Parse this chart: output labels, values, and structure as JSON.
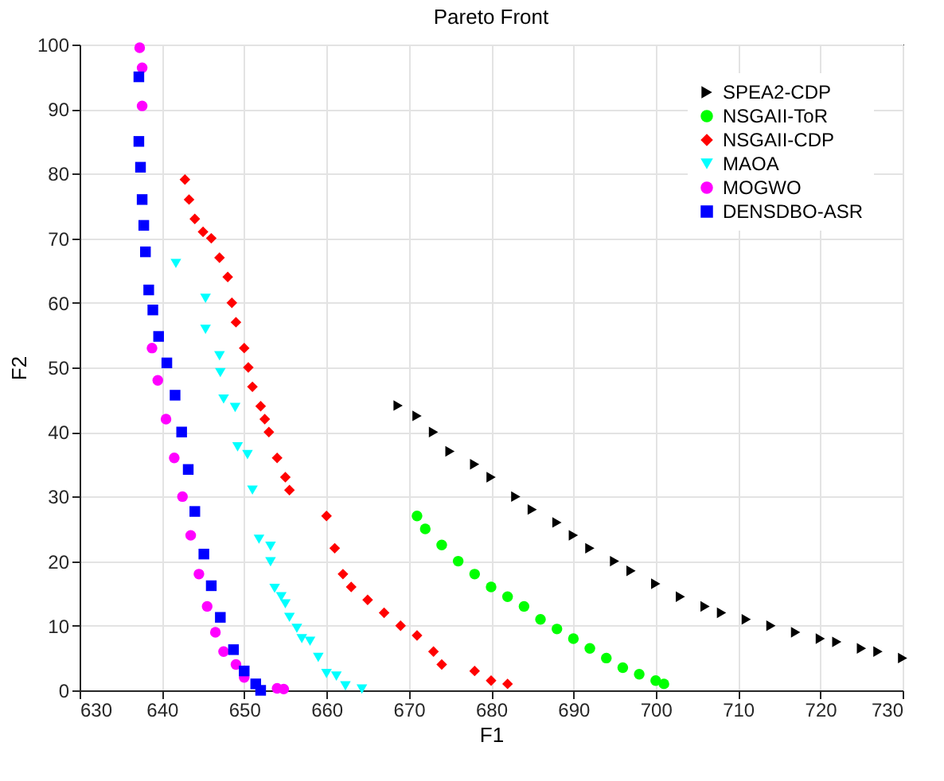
{
  "chart_data": {
    "type": "scatter",
    "title": "Pareto Front",
    "xlabel": "F1",
    "ylabel": "F2",
    "xlim": [
      630,
      730
    ],
    "xticks": [
      630,
      640,
      650,
      660,
      670,
      680,
      690,
      700,
      710,
      720,
      730
    ],
    "ylim": [
      0,
      100
    ],
    "yticks": [
      0,
      10,
      20,
      30,
      40,
      50,
      60,
      70,
      80,
      90,
      100
    ],
    "grid": true,
    "legend": "top right",
    "series": [
      {
        "name": "SPEA2-CDP",
        "color": "#000000",
        "marker": "triangle-right",
        "x": [
          668.7,
          671,
          673,
          675,
          678,
          680,
          683,
          685,
          688,
          690,
          692,
          695,
          697,
          700,
          703,
          706,
          708,
          711,
          714,
          717,
          720,
          722,
          725,
          727,
          730
        ],
        "values": [
          44.1,
          42.5,
          40,
          37,
          35,
          33,
          30,
          28,
          26,
          24,
          22,
          20,
          18.5,
          16.5,
          14.5,
          13,
          12,
          11,
          10,
          9,
          8,
          7.5,
          6.5,
          6,
          5
        ]
      },
      {
        "name": "NSGAII-ToR",
        "color": "#00ff00",
        "marker": "circle",
        "x": [
          671,
          672,
          674,
          676,
          678,
          680,
          682,
          684,
          686,
          688,
          690,
          692,
          694,
          696,
          698,
          700,
          701
        ],
        "values": [
          27,
          25,
          22.5,
          20,
          18,
          16,
          14.5,
          13,
          11,
          9.5,
          8,
          6.5,
          5,
          3.5,
          2.5,
          1.5,
          1
        ]
      },
      {
        "name": "NSGAII-CDP",
        "color": "#ff0000",
        "marker": "diamond",
        "x": [
          642.8,
          643.3,
          644,
          645,
          646,
          647,
          648,
          648.5,
          649,
          650,
          650.5,
          651,
          652,
          652.5,
          653,
          654,
          655,
          655.5,
          660,
          661,
          662,
          663,
          665,
          667,
          669,
          671,
          673,
          674,
          678,
          680,
          682
        ],
        "values": [
          79.1,
          76,
          73,
          71,
          70,
          67,
          64,
          60,
          57,
          53,
          50,
          47,
          44,
          42,
          40,
          36,
          33,
          31,
          27,
          22,
          18,
          16,
          14,
          12,
          10,
          8.5,
          6,
          4,
          3,
          1.5,
          1
        ]
      },
      {
        "name": "MAOA",
        "color": "#00ffff",
        "marker": "triangle-down",
        "x": [
          641.7,
          645.3,
          645.3,
          647,
          647.1,
          647.5,
          648.9,
          649.2,
          650.4,
          651,
          651.8,
          653.2,
          653.2,
          653.7,
          654.5,
          655,
          655.5,
          656.4,
          657,
          658,
          659,
          660,
          661.2,
          662.3,
          664.3
        ],
        "values": [
          66.1,
          60.7,
          55.9,
          51.8,
          49.2,
          45.1,
          43.8,
          37.7,
          36.5,
          31,
          23.4,
          22.3,
          19.9,
          15.8,
          14.5,
          13.4,
          11.3,
          9.6,
          8,
          7.6,
          5.1,
          2.6,
          2.2,
          0.7,
          0.2
        ]
      },
      {
        "name": "MOGWO",
        "color": "#ff00ff",
        "marker": "circle",
        "x": [
          637.3,
          637.6,
          637.6,
          638.8,
          639.5,
          640.5,
          641.5,
          642.5,
          643.5,
          644.5,
          645.5,
          646.5,
          647.5,
          649,
          650,
          654,
          654.8
        ],
        "values": [
          99.5,
          96.4,
          90.5,
          53,
          48,
          42,
          36,
          30,
          24,
          18,
          13,
          9,
          6,
          4,
          2,
          0.3,
          0.2
        ]
      },
      {
        "name": "DENSDBO-ASR",
        "color": "#0000ff",
        "marker": "square",
        "x": [
          637.2,
          637.2,
          637.4,
          637.6,
          637.8,
          638,
          638.4,
          638.9,
          639.6,
          640.6,
          641.6,
          642.4,
          643.2,
          644,
          645.1,
          646,
          647.1,
          648.7,
          650,
          651.4,
          652
        ],
        "values": [
          95,
          85,
          81,
          76,
          72,
          67.9,
          62,
          58.9,
          54.8,
          50.7,
          45.7,
          40,
          34.2,
          27.7,
          21.1,
          16.2,
          11.3,
          6.3,
          3,
          1,
          0
        ]
      }
    ]
  }
}
